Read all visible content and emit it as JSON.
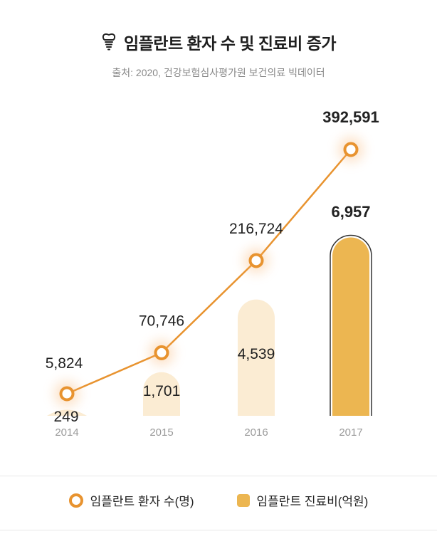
{
  "header": {
    "title": "임플란트 환자 수 및 진료비 증가",
    "subtitle": "출처: 2020, 건강보험심사평가원 보건의료 빅데이터",
    "icon": "tooth-icon"
  },
  "chart_data": {
    "type": "bar",
    "categories": [
      "2014",
      "2015",
      "2016",
      "2017"
    ],
    "series": [
      {
        "name": "임플란트 진료비(억원)",
        "kind": "bar",
        "values": [
          249,
          1701,
          4539,
          6957
        ],
        "labels": [
          "249",
          "1,701",
          "4,539",
          "6,957"
        ]
      },
      {
        "name": "임플란트 환자 수(명)",
        "kind": "line",
        "values": [
          5824,
          70746,
          216724,
          392591
        ],
        "labels": [
          "5,824",
          "70,746",
          "216,724",
          "392,591"
        ]
      }
    ],
    "title": "임플란트 환자 수 및 진료비 증가",
    "grid": false,
    "legend_position": "bottom",
    "colors": {
      "bar_faded": "#fbecd3",
      "bar_highlight": "#ecb651",
      "line": "#e8932f",
      "axis_label": "#9a9a9a"
    }
  },
  "legend": {
    "line_label": "임플란트 환자 수(명)",
    "bar_label": "임플란트 진료비(억원)"
  }
}
